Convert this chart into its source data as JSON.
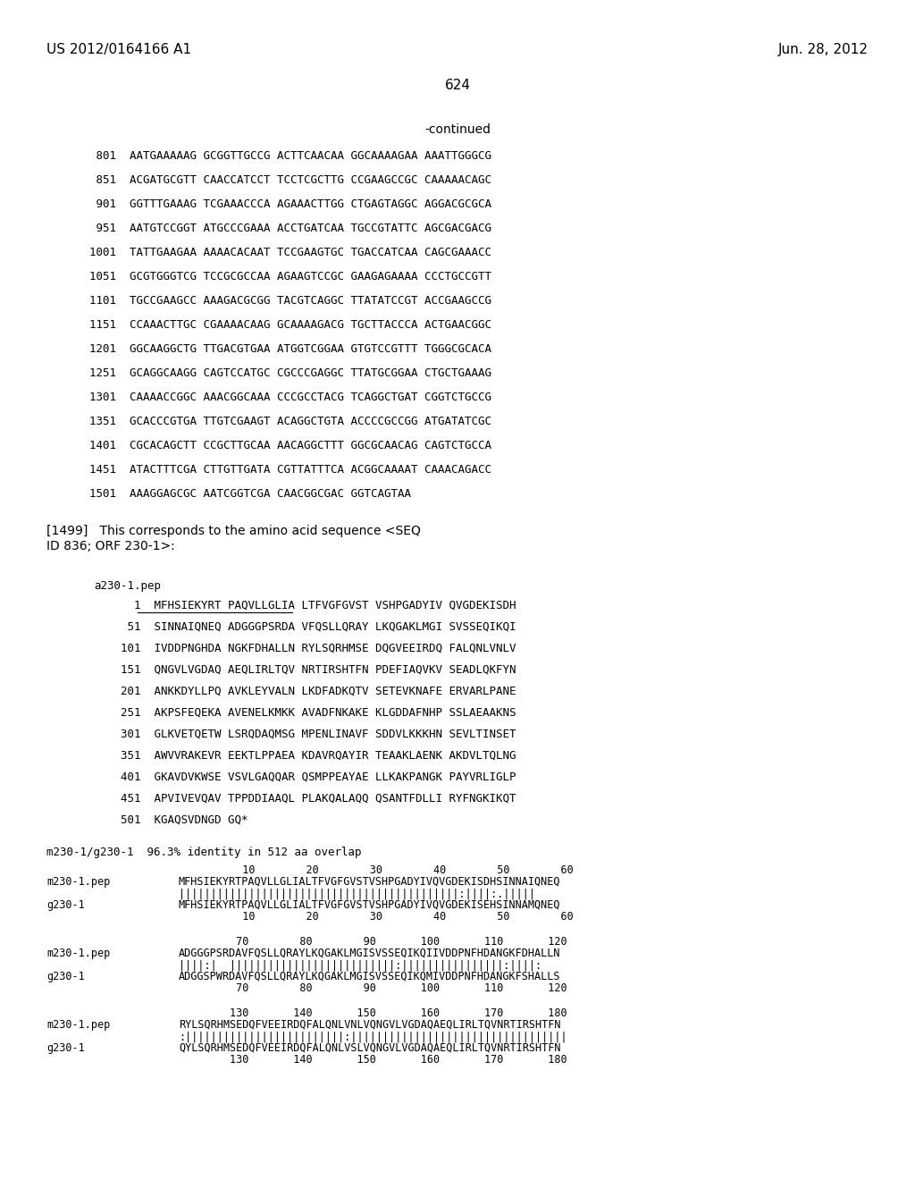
{
  "header_left": "US 2012/0164166 A1",
  "header_right": "Jun. 28, 2012",
  "page_number": "624",
  "continued_label": "-continued",
  "background_color": "#ffffff",
  "text_color": "#000000",
  "dna_lines": [
    " 801  AATGAAAAAG GCGGTTGCCG ACTTCAACAA GGCAAAAGAA AAATTGGGCG",
    " 851  ACGATGCGTT CAACCATCCT TCCTCGCTTG CCGAAGCCGC CAAAAACAGC",
    " 901  GGTTTGAAAG TCGAAACCCA AGAAACTTGG CTGAGTAGGC AGGACGCGCA",
    " 951  AATGTCCGGT ATGCCCGAAA ACCTGATCAA TGCCGTATTC AGCGACGACG",
    "1001  TATTGAAGAA AAAACACAAT TCCGAAGTGC TGACCATCAA CAGCGAAACC",
    "1051  GCGTGGGTCG TCCGCGCCAA AGAAGTCCGC GAAGAGAAAA CCCTGCCGTT",
    "1101  TGCCGAAGCC AAAGACGCGG TACGTCAGGC TTATATCCGT ACCGAAGCCG",
    "1151  CCAAACTTGC CGAAAACAAG GCAAAAGACG TGCTTACCCA ACTGAACGGC",
    "1201  GGCAAGGCTG TTGACGTGAA ATGGTCGGAA GTGTCCGTTT TGGGCGCACA",
    "1251  GCAGGCAAGG CAGTCCATGC CGCCCGAGGC TTATGCGGAA CTGCTGAAAG",
    "1301  CAAAACCGGC AAACGGCAAA CCCGCCTACG TCAGGCTGAT CGGTCTGCCG",
    "1351  GCACCCGTGA TTGTCGAAGT ACAGGCTGTA ACCCCGCCGG ATGATATCGC",
    "1401  CGCACAGCTT CCGCTTGCAA AACAGGCTTT GGCGCAACAG CAGTCTGCCA",
    "1451  ATACTTTCGA CTTGTTGATA CGTTATTTCA ACGGCAAAAT CAAACAGACC",
    "1501  AAAGGAGCGC AATCGGTCGA CAACGGCGAC GGTCAGTAA"
  ],
  "para1499_line1": "[1499]   This corresponds to the amino acid sequence <SEQ",
  "para1499_line2": "ID 836; ORF 230-1>:",
  "protein_label": "a230-1.pep",
  "protein_lines": [
    "      1  MFHSIEKYRT PAQVLLGLIA LTFVGFGVST VSHPGADYIV QVGDEKISDH",
    "     51  SINNAIQNEQ ADGGGPSRDA VFQSLLQRAY LKQGAKLMGI SVSSEQIKQI",
    "    101  IVDDPNGHDA NGKFDHALLN RYLSQRHMSE DQGVEEIRDQ FALQNLVNLV",
    "    151  QNGVLVGDAQ AEQLIRLTQV NRTIRSHTFN PDEFIAQVKV SEADLQKFYN",
    "    201  ANKKDYLLPQ AVKLEYVALN LKDFADKQTV SETEVKNAFE ERVARLPANE",
    "    251  AKPSFEQEKA AVENELKMKK AVADFNKAKE KLGDDAFNHP SSLAEAAKNS",
    "    301  GLKVETQETW LSRQDAQMSG MPENLINAVF SDDVLKKKHN SEVLTINSET",
    "    351  AWVVRAKEVR EEKTLPPAEA KDAVRQAYIR TEAAKLAENK AKDVLTQLNG",
    "    401  GKAVDVKWSE VSVLGAQQAR QSMPPEAYAE LLKAKPANGK PAYVRLIGLP",
    "    451  APVIVEVQAV TPPDDIAAQL PLAKQALAQQ QSANTFDLLI RYFNGKIKQT",
    "    501  KGAQSVDNGD GQ*"
  ],
  "underline_seq": "MFHSIEKYRT PAQVLLGLIA LTFVGFGVST",
  "alignment_title": "m230-1/g230-1  96.3% identity in 512 aa overlap",
  "alignment_blocks": [
    {
      "numbers_top": "          10        20        30        40        50        60",
      "line1_label": "m230-1.pep",
      "line1_seq": "MFHSIEKYRTPAQVLLGLIALTFVGFGVSTVSHPGADYIVQVGDEKISDHSINNAIQNEQ",
      "match_line": "||||||||||||||||||||||||||||||||||||||||||||:||||:.|||||",
      "line2_label": "g230-1",
      "line2_seq": "MFHSIEKYRTPAQVLLGLIALTFVGFGVSTVSHPGADYIVQVGDEKISEHSINNAMQNEQ",
      "numbers_bot": "          10        20        30        40        50        60"
    },
    {
      "numbers_top": "         70        80        90       100       110       120",
      "line1_label": "m230-1.pep",
      "line1_seq": "ADGGGPSRDAVFQSLLQRAYLKQGAKLMGISVSSEQIKQIIVDDPNFHDANGKFDHALLN",
      "match_line": "||||:|  ||||||||||||||||||||||||||:||||||||||||||||:||||:",
      "line2_label": "g230-1",
      "line2_seq": "ADGGSPWRDAVFQSLLQRAYLKQGAKLMGISVSSEQIKQMIVDDPNFHDANGKFSHALLS",
      "numbers_bot": "         70        80        90       100       110       120"
    },
    {
      "numbers_top": "        130       140       150       160       170       180",
      "line1_label": "m230-1.pep",
      "line1_seq": "RYLSQRHMSEDQFVEEIRDQFALQNLVNLVQNGVLVGDAQAEQLIRLTQVNRTIRSHTFN",
      "match_line": ":|||||||||||||||||||||||||:||||||||||||||||||||||||||||||||||",
      "line2_label": "g230-1",
      "line2_seq": "QYLSQRHMSEDQFVEEIRDQFALQNLVSLVQNGVLVGDAQAEQLIRLTQVNRTIRSHTFN",
      "numbers_bot": "        130       140       150       160       170       180"
    }
  ]
}
